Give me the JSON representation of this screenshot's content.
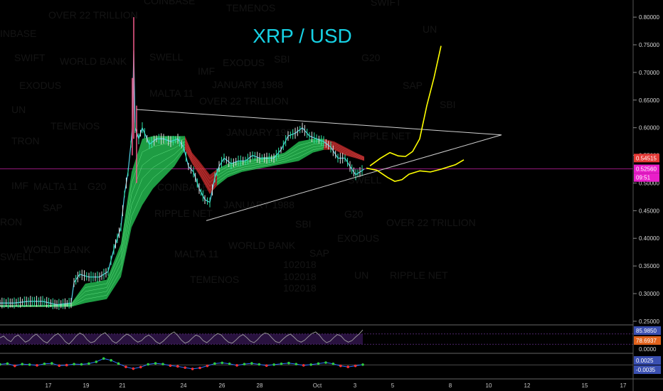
{
  "chart_data": {
    "type": "candlestick",
    "title": "XRP / USD",
    "x_ticks": [
      "17",
      "19",
      "21",
      "24",
      "26",
      "28",
      "Oct",
      "3",
      "5",
      "8",
      "10",
      "12",
      "15",
      "17"
    ],
    "y_ticks": [
      "0.25000",
      "0.30000",
      "0.35000",
      "0.40000",
      "0.45000",
      "0.50000",
      "0.55000",
      "0.60000",
      "0.65000",
      "0.70000",
      "0.75000",
      "0.80000"
    ],
    "ylim": [
      0.237,
      0.822
    ],
    "last_price": 0.5256,
    "price_markers": [
      {
        "label": "0.54515",
        "value": 0.54515,
        "color": "#e53935"
      },
      {
        "label": "0.52560",
        "value": 0.5256,
        "color": "#e91ec9"
      },
      {
        "label": "09:51",
        "value": 0.51,
        "color": "#e91ec9"
      }
    ],
    "price_path": [
      [
        0,
        0.283
      ],
      [
        20,
        0.283
      ],
      [
        40,
        0.286
      ],
      [
        60,
        0.286
      ],
      [
        80,
        0.28
      ],
      [
        100,
        0.283
      ],
      [
        104,
        0.32
      ],
      [
        112,
        0.335
      ],
      [
        125,
        0.33
      ],
      [
        140,
        0.33
      ],
      [
        152,
        0.34
      ],
      [
        156,
        0.36
      ],
      [
        160,
        0.38
      ],
      [
        165,
        0.4
      ],
      [
        170,
        0.42
      ],
      [
        175,
        0.48
      ],
      [
        180,
        0.52
      ],
      [
        184,
        0.57
      ],
      [
        186,
        0.6
      ],
      [
        188,
        0.74
      ],
      [
        190,
        0.6
      ],
      [
        195,
        0.58
      ],
      [
        200,
        0.6
      ],
      [
        210,
        0.57
      ],
      [
        220,
        0.58
      ],
      [
        230,
        0.58
      ],
      [
        240,
        0.575
      ],
      [
        250,
        0.58
      ],
      [
        258,
        0.565
      ],
      [
        265,
        0.53
      ],
      [
        272,
        0.52
      ],
      [
        280,
        0.49
      ],
      [
        288,
        0.47
      ],
      [
        295,
        0.465
      ],
      [
        302,
        0.51
      ],
      [
        308,
        0.53
      ],
      [
        315,
        0.545
      ],
      [
        325,
        0.535
      ],
      [
        335,
        0.54
      ],
      [
        345,
        0.54
      ],
      [
        355,
        0.55
      ],
      [
        365,
        0.545
      ],
      [
        375,
        0.545
      ],
      [
        385,
        0.545
      ],
      [
        395,
        0.56
      ],
      [
        405,
        0.585
      ],
      [
        415,
        0.59
      ],
      [
        425,
        0.6
      ],
      [
        435,
        0.585
      ],
      [
        445,
        0.58
      ],
      [
        455,
        0.575
      ],
      [
        465,
        0.565
      ],
      [
        475,
        0.545
      ],
      [
        485,
        0.545
      ],
      [
        492,
        0.53
      ],
      [
        500,
        0.515
      ],
      [
        506,
        0.52
      ],
      [
        512,
        0.525
      ]
    ],
    "wicks": [
      {
        "x": 188,
        "high": 0.8,
        "low": 0.58
      },
      {
        "x": 192,
        "high": 0.64,
        "low": 0.5
      },
      {
        "x": 186,
        "high": 0.69,
        "low": 0.55
      }
    ],
    "ribbon": {
      "bull_color": "#28d05a",
      "bear_color": "#c62828",
      "points": [
        [
          0,
          0.276,
          0.279
        ],
        [
          60,
          0.276,
          0.279
        ],
        [
          100,
          0.276,
          0.282
        ],
        [
          120,
          0.283,
          0.318
        ],
        [
          150,
          0.29,
          0.325
        ],
        [
          170,
          0.33,
          0.39
        ],
        [
          185,
          0.42,
          0.52
        ],
        [
          200,
          0.46,
          0.58
        ],
        [
          215,
          0.49,
          0.585
        ],
        [
          230,
          0.51,
          0.585
        ],
        [
          245,
          0.53,
          0.585
        ],
        [
          260,
          0.56,
          0.585
        ],
        [
          270,
          0.535,
          0.555
        ],
        [
          280,
          0.515,
          0.54
        ],
        [
          295,
          0.48,
          0.515
        ],
        [
          305,
          0.495,
          0.525
        ],
        [
          320,
          0.51,
          0.535
        ],
        [
          340,
          0.52,
          0.54
        ],
        [
          360,
          0.525,
          0.545
        ],
        [
          380,
          0.53,
          0.548
        ],
        [
          400,
          0.535,
          0.555
        ],
        [
          420,
          0.54,
          0.575
        ],
        [
          440,
          0.555,
          0.58
        ],
        [
          455,
          0.56,
          0.58
        ],
        [
          470,
          0.56,
          0.575
        ],
        [
          485,
          0.55,
          0.565
        ],
        [
          500,
          0.545,
          0.555
        ],
        [
          512,
          0.54,
          0.548
        ]
      ]
    },
    "triangle": {
      "color": "#d0d0d0",
      "points": [
        [
          192,
          0.633
        ],
        [
          705,
          0.587
        ],
        [
          290,
          0.432
        ]
      ]
    },
    "projections": {
      "color": "#ffff00",
      "up": [
        [
          520,
          0.531
        ],
        [
          535,
          0.545
        ],
        [
          548,
          0.555
        ],
        [
          560,
          0.549
        ],
        [
          570,
          0.548
        ],
        [
          580,
          0.557
        ],
        [
          590,
          0.58
        ],
        [
          600,
          0.64
        ],
        [
          610,
          0.69
        ],
        [
          620,
          0.748
        ]
      ],
      "side": [
        [
          515,
          0.527
        ],
        [
          530,
          0.523
        ],
        [
          545,
          0.51
        ],
        [
          555,
          0.503
        ],
        [
          565,
          0.506
        ],
        [
          575,
          0.516
        ],
        [
          590,
          0.522
        ],
        [
          605,
          0.52
        ],
        [
          620,
          0.525
        ],
        [
          640,
          0.533
        ],
        [
          652,
          0.542
        ]
      ]
    },
    "rsi": {
      "ticks": [
        "85.9850",
        "78.6937"
      ],
      "ylim": [
        0,
        100
      ],
      "zero_label": "0.0000",
      "band": [
        30,
        70
      ],
      "values": [
        55,
        62,
        48,
        40,
        58,
        66,
        52,
        38,
        45,
        60,
        70,
        56,
        42,
        35,
        50,
        64,
        72,
        58,
        40,
        30,
        45,
        62,
        74,
        66,
        48,
        36,
        40,
        55,
        68,
        75,
        60,
        42,
        34,
        46,
        60,
        70,
        62,
        48,
        38,
        44,
        58,
        66,
        55,
        40,
        32,
        42,
        56,
        70,
        78,
        64,
        46,
        34,
        40,
        54,
        66,
        60,
        44,
        36,
        48,
        62,
        72,
        66,
        50,
        38,
        34,
        46,
        60,
        68,
        56,
        42,
        36,
        48,
        64,
        74,
        70,
        54,
        40,
        36,
        50,
        62,
        70,
        58,
        44,
        38,
        46,
        60,
        72,
        78,
        66,
        48,
        36,
        42,
        56,
        68,
        62,
        46,
        38,
        44,
        58,
        70,
        86
      ]
    },
    "momentum": {
      "ticks": [
        "0.0025",
        "-0.0035"
      ],
      "ylim": [
        -0.005,
        0.004
      ],
      "values": [
        0.0002,
        0.0005,
        -0.0004,
        0.0003,
        0.0001,
        -0.0002,
        0.0004,
        0.0006,
        -0.0003,
        -0.0001,
        0.0003,
        0.0002,
        0.0005,
        0.0012,
        0.0025,
        0.0018,
        0.0005,
        -0.0008,
        -0.0015,
        -0.0009,
        0.0002,
        0.0006,
        0.0003,
        -0.0003,
        -0.0006,
        -0.0011,
        -0.0016,
        -0.0012,
        -0.0004,
        0.0005,
        0.0008,
        0.0004,
        -0.0002,
        0.0003,
        0.0006,
        0.0002,
        -0.0003,
        0.0001,
        0.0004,
        0.0007,
        0.0003,
        -0.0002,
        0.0001,
        0.0005,
        0.0009,
        0.0004,
        -0.0004,
        -0.0008,
        -0.0004,
        0.0001
      ]
    },
    "watermarks": [
      "OVER 22 TRILLION",
      "COINBASE",
      "TEMENOS",
      "SWIFT",
      "UN",
      "INBASE",
      "SWIFT",
      "WORLD BANK",
      "SWELL",
      "IMF",
      "EXODUS",
      "SBI",
      "G20",
      "EXODUS",
      "JANUARY 1988",
      "SAP",
      "MALTA 11",
      "OVER 22 TRILLION",
      "SBI",
      "UN",
      "TEMENOS",
      "JANUARY 1988",
      "RIPPLE NET",
      "TRON",
      "IMF",
      "MALTA 11",
      "G20",
      "COINBASE",
      "SWELL",
      "SAP",
      "RIPPLE NET",
      "JANUARY 1988",
      "G20",
      "RON",
      "SBI",
      "OVER 22 TRILLION",
      "EXODUS",
      "WORLD BANK",
      "WORLD BANK",
      "SWELL",
      "MALTA 11",
      "SAP",
      "102018",
      "102018",
      "102018",
      "UN",
      "RIPPLE NET",
      "TEMENOS"
    ]
  }
}
